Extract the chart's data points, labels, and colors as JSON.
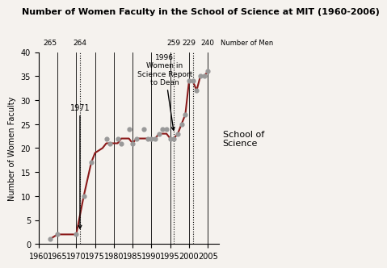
{
  "title": "Number of Women Faculty in the School of Science at MIT (1960-2006)",
  "ylabel": "Number of Women Faculty",
  "xlim": [
    1960,
    2008
  ],
  "ylim": [
    0,
    40
  ],
  "xticks": [
    1960,
    1965,
    1970,
    1975,
    1980,
    1985,
    1990,
    1995,
    2000,
    2005
  ],
  "yticks": [
    0,
    5,
    10,
    15,
    20,
    25,
    30,
    35,
    40
  ],
  "bg_color": "#f5f2ee",
  "line_color": "#8b1a1a",
  "dot_color": "#999999",
  "annotation_1971_label": "1971",
  "annotation_1996_label": "1996\nWomen in\nScience Report\nto Dean",
  "men_labels": [
    {
      "x": 1963,
      "text": "265"
    },
    {
      "x": 1971,
      "text": "264"
    },
    {
      "x": 1996,
      "text": "259"
    },
    {
      "x": 2000,
      "text": "229"
    },
    {
      "x": 2005,
      "text": "240"
    }
  ],
  "men_label_text": "Number of Men",
  "legend_text": "School of\nScience",
  "vlines_solid": [
    1965,
    1970,
    1975,
    1980,
    1985,
    1990,
    1995,
    2000,
    2005
  ],
  "vlines_dotted": [
    1971,
    1996,
    2001
  ],
  "line_data": [
    [
      1963,
      1
    ],
    [
      1965,
      2
    ],
    [
      1970,
      2
    ],
    [
      1972,
      10
    ],
    [
      1974,
      17
    ],
    [
      1975,
      19
    ],
    [
      1977,
      20
    ],
    [
      1978,
      21
    ],
    [
      1980,
      21
    ],
    [
      1981,
      21
    ],
    [
      1982,
      22
    ],
    [
      1983,
      22
    ],
    [
      1984,
      22
    ],
    [
      1985,
      21
    ],
    [
      1986,
      22
    ],
    [
      1987,
      22
    ],
    [
      1988,
      22
    ],
    [
      1989,
      22
    ],
    [
      1990,
      22
    ],
    [
      1991,
      22
    ],
    [
      1992,
      23
    ],
    [
      1993,
      23
    ],
    [
      1994,
      23
    ],
    [
      1995,
      22
    ],
    [
      1996,
      22
    ],
    [
      1997,
      23
    ],
    [
      1998,
      25
    ],
    [
      1999,
      27
    ],
    [
      2000,
      34
    ],
    [
      2001,
      34
    ],
    [
      2002,
      32
    ],
    [
      2003,
      35
    ],
    [
      2004,
      35
    ],
    [
      2005,
      36
    ]
  ],
  "scatter_data": [
    [
      1963,
      1
    ],
    [
      1965,
      2
    ],
    [
      1970,
      2
    ],
    [
      1972,
      10
    ],
    [
      1974,
      17
    ],
    [
      1978,
      22
    ],
    [
      1979,
      21
    ],
    [
      1981,
      22
    ],
    [
      1982,
      21
    ],
    [
      1984,
      24
    ],
    [
      1985,
      21
    ],
    [
      1986,
      22
    ],
    [
      1988,
      24
    ],
    [
      1989,
      22
    ],
    [
      1990,
      22
    ],
    [
      1991,
      22
    ],
    [
      1992,
      23
    ],
    [
      1993,
      24
    ],
    [
      1994,
      24
    ],
    [
      1995,
      22
    ],
    [
      1996,
      22
    ],
    [
      1997,
      23
    ],
    [
      1998,
      25
    ],
    [
      1999,
      27
    ],
    [
      2000,
      34
    ],
    [
      2001,
      34
    ],
    [
      2002,
      32
    ],
    [
      2003,
      35
    ],
    [
      2004,
      35
    ],
    [
      2005,
      36
    ]
  ]
}
